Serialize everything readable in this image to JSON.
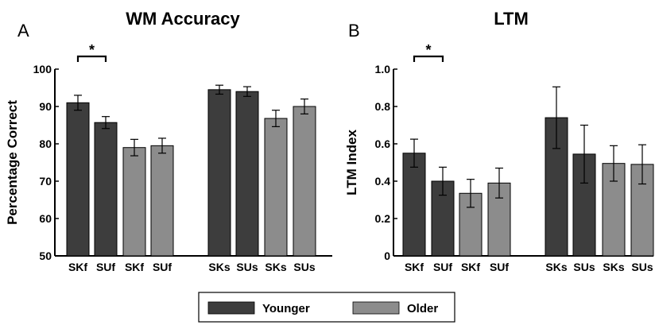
{
  "legend": {
    "entries": [
      {
        "name": "Younger",
        "color": "#3d3d3d"
      },
      {
        "name": "Older",
        "color": "#8c8c8c"
      }
    ]
  },
  "chart_data": [
    {
      "type": "bar",
      "panel_label": "A",
      "title": "WM Accuracy",
      "ylabel": "Percentage Correct",
      "xlabel": "",
      "ylim": [
        50,
        100
      ],
      "yticks": [
        50,
        60,
        70,
        80,
        90,
        100
      ],
      "categories": [
        "SKf",
        "SUf",
        "SKf",
        "SUf",
        "SKs",
        "SUs",
        "SKs",
        "SUs"
      ],
      "groups": [
        "Younger",
        "Younger",
        "Older",
        "Older",
        "Younger",
        "Younger",
        "Older",
        "Older"
      ],
      "values": [
        91.0,
        85.7,
        79.0,
        79.5,
        94.5,
        94.0,
        86.8,
        90.0
      ],
      "errors": [
        2.0,
        1.6,
        2.2,
        2.0,
        1.2,
        1.3,
        2.2,
        2.0
      ],
      "significance": {
        "between": [
          0,
          1
        ],
        "label": "*"
      }
    },
    {
      "type": "bar",
      "panel_label": "B",
      "title": "LTM",
      "ylabel": "LTM Index",
      "xlabel": "",
      "ylim": [
        0,
        1.0
      ],
      "yticks": [
        "0",
        "0.2",
        "0.4",
        "0.6",
        "0.8",
        "1.0"
      ],
      "categories": [
        "SKf",
        "SUf",
        "SKf",
        "SUf",
        "SKs",
        "SUs",
        "SKs",
        "SUs"
      ],
      "groups": [
        "Younger",
        "Younger",
        "Older",
        "Older",
        "Younger",
        "Younger",
        "Older",
        "Older"
      ],
      "values": [
        0.55,
        0.4,
        0.335,
        0.39,
        0.74,
        0.545,
        0.495,
        0.49
      ],
      "errors": [
        0.075,
        0.075,
        0.075,
        0.08,
        0.165,
        0.155,
        0.095,
        0.105
      ],
      "significance": {
        "between": [
          0,
          1
        ],
        "label": "*"
      }
    }
  ]
}
